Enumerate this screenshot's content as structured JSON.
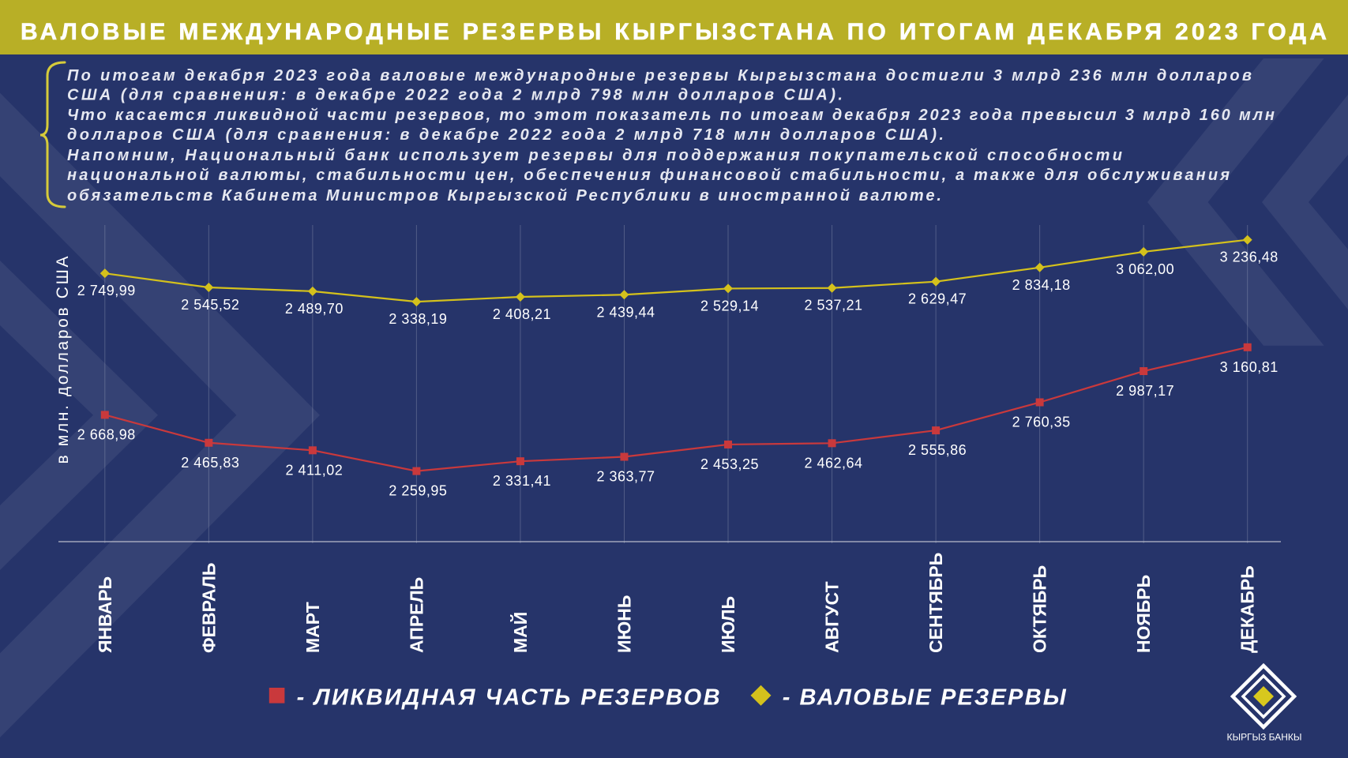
{
  "title": "ВАЛОВЫЕ МЕЖДУНАРОДНЫЕ РЕЗЕРВЫ КЫРГЫЗСТАНА ПО ИТОГАМ ДЕКАБРЯ 2023 ГОДА",
  "description": {
    "lines": [
      "По итогам декабря 2023 года валовые международные резервы Кыргызстана достигли 3 млрд 236 млн долларов",
      "США (для сравнения: в декабре 2022 года 2 млрд 798 млн долларов США).",
      "Что касается ликвидной части резервов, то этот показатель по итогам декабря 2023 года превысил 3 млрд 160 млн",
      "долларов США (для сравнения: в декабре 2022 года 2 млрд 718 млн долларов США).",
      "Напомним, Национальный банк использует резервы для поддержания покупательской способности",
      "национальной валюты, стабильности цен, обеспечения финансовой стабильности, а также для обслуживания",
      "обязательств Кабинета Министров Кыргызской Республики в иностранной валюте."
    ]
  },
  "chart_data": {
    "type": "line",
    "x": [
      "ЯНВАРЬ",
      "ФЕВРАЛЬ",
      "МАРТ",
      "АПРЕЛЬ",
      "МАЙ",
      "ИЮНЬ",
      "ИЮЛЬ",
      "АВГУСТ",
      "СЕНТЯБРЬ",
      "ОКТЯБРЬ",
      "НОЯБРЬ",
      "ДЕКАБРЬ"
    ],
    "ylabel": "в млн. долларов США",
    "grid": "vertical",
    "legend_position": "bottom",
    "legend_separator": "-",
    "series": [
      {
        "name": "ВАЛОВЫЕ РЕЗЕРВЫ",
        "marker": "diamond",
        "color": "#d4c11c",
        "values": [
          2749.99,
          2545.52,
          2489.7,
          2338.19,
          2408.21,
          2439.44,
          2529.14,
          2537.21,
          2629.47,
          2834.18,
          3062.0,
          3236.48
        ]
      },
      {
        "name": "ЛИКВИДНАЯ ЧАСТЬ РЕЗЕРВОВ",
        "marker": "square",
        "color": "#c9393c",
        "values": [
          2668.98,
          2465.83,
          2411.02,
          2259.95,
          2331.41,
          2363.77,
          2453.25,
          2462.64,
          2555.86,
          2760.35,
          2987.17,
          3160.81
        ]
      }
    ]
  },
  "logo": {
    "text": "КЫРГЫЗ БАНКЫ",
    "icon": "nested-diamond-logo-icon"
  },
  "colors": {
    "background": "#26346a",
    "banner": "#b8af26",
    "brace": "#d6cb3a"
  }
}
